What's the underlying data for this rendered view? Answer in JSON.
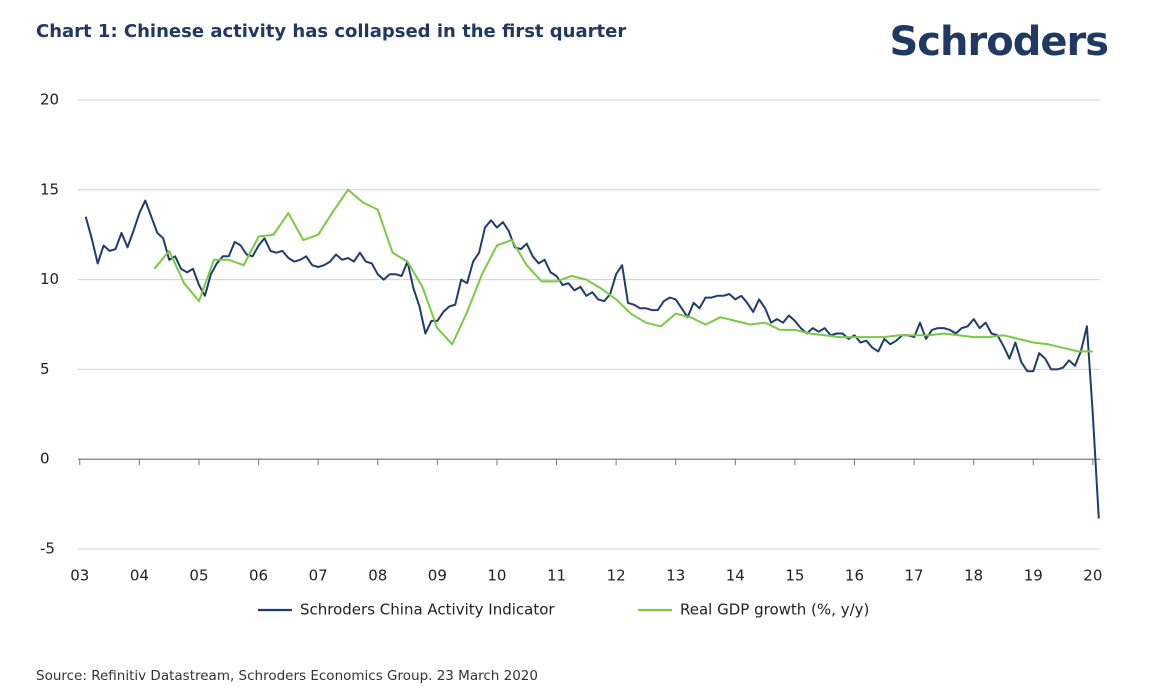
{
  "chart_data": {
    "type": "line",
    "title": "Chart 1: Chinese activity has collapsed in the first quarter",
    "logo": "Schroders",
    "source": "Source: Refinitiv Datastream, Schroders Economics Group. 23 March 2020",
    "xlim": [
      2.97,
      20.12
    ],
    "xticks": [
      {
        "value": 3,
        "label": "03"
      },
      {
        "value": 4,
        "label": "04"
      },
      {
        "value": 5,
        "label": "05"
      },
      {
        "value": 6,
        "label": "06"
      },
      {
        "value": 7,
        "label": "07"
      },
      {
        "value": 8,
        "label": "08"
      },
      {
        "value": 9,
        "label": "09"
      },
      10,
      11,
      12,
      13,
      14,
      15,
      16,
      17,
      18,
      19,
      20
    ],
    "ylim": [
      -5,
      20
    ],
    "yticks": [
      -5,
      0,
      5,
      10,
      15,
      20
    ],
    "grid": true,
    "legend": "bottom",
    "series": [
      {
        "name": "Schroders China Activity Indicator",
        "color": "#1f3c6e",
        "x": [
          3.1,
          3.2,
          3.3,
          3.4,
          3.5,
          3.6,
          3.7,
          3.8,
          3.9,
          4.0,
          4.1,
          4.2,
          4.3,
          4.4,
          4.5,
          4.6,
          4.7,
          4.8,
          4.9,
          5.0,
          5.1,
          5.2,
          5.3,
          5.4,
          5.5,
          5.6,
          5.7,
          5.8,
          5.9,
          6.0,
          6.1,
          6.2,
          6.3,
          6.4,
          6.5,
          6.6,
          6.7,
          6.8,
          6.9,
          7.0,
          7.1,
          7.2,
          7.3,
          7.4,
          7.5,
          7.6,
          7.7,
          7.8,
          7.9,
          8.0,
          8.1,
          8.2,
          8.3,
          8.4,
          8.5,
          8.6,
          8.7,
          8.8,
          8.9,
          9.0,
          9.1,
          9.2,
          9.3,
          9.4,
          9.5,
          9.6,
          9.7,
          9.8,
          9.9,
          10.0,
          10.1,
          10.2,
          10.3,
          10.4,
          10.5,
          10.6,
          10.7,
          10.8,
          10.9,
          11.0,
          11.1,
          11.2,
          11.3,
          11.4,
          11.5,
          11.6,
          11.7,
          11.8,
          11.9,
          12.0,
          12.1,
          12.2,
          12.3,
          12.4,
          12.5,
          12.6,
          12.7,
          12.8,
          12.9,
          13.0,
          13.1,
          13.2,
          13.3,
          13.4,
          13.5,
          13.6,
          13.7,
          13.8,
          13.9,
          14.0,
          14.1,
          14.2,
          14.3,
          14.4,
          14.5,
          14.6,
          14.7,
          14.8,
          14.9,
          15.0,
          15.1,
          15.2,
          15.3,
          15.4,
          15.5,
          15.6,
          15.7,
          15.8,
          15.9,
          16.0,
          16.1,
          16.2,
          16.3,
          16.4,
          16.5,
          16.6,
          16.7,
          16.8,
          16.9,
          17.0,
          17.1,
          17.2,
          17.3,
          17.4,
          17.5,
          17.6,
          17.7,
          17.8,
          17.9,
          18.0,
          18.1,
          18.2,
          18.3,
          18.4,
          18.5,
          18.6,
          18.7,
          18.8,
          18.9,
          19.0,
          19.1,
          19.2,
          19.3,
          19.4,
          19.5,
          19.6,
          19.7,
          19.8,
          19.9,
          20.0,
          20.1
        ],
        "values": [
          13.5,
          12.3,
          10.9,
          11.9,
          11.6,
          11.7,
          12.6,
          11.8,
          12.7,
          13.7,
          14.4,
          13.5,
          12.6,
          12.3,
          11.1,
          11.3,
          10.6,
          10.4,
          10.6,
          9.7,
          9.1,
          10.3,
          10.9,
          11.3,
          11.3,
          12.1,
          11.9,
          11.4,
          11.3,
          11.9,
          12.3,
          11.6,
          11.5,
          11.6,
          11.2,
          11.0,
          11.1,
          11.3,
          10.8,
          10.7,
          10.8,
          11.0,
          11.4,
          11.1,
          11.2,
          11.0,
          11.5,
          11.0,
          10.9,
          10.3,
          10.0,
          10.3,
          10.3,
          10.2,
          11.0,
          9.5,
          8.5,
          7.0,
          7.7,
          7.7,
          8.2,
          8.5,
          8.6,
          10.0,
          9.8,
          11.0,
          11.5,
          12.9,
          13.3,
          12.9,
          13.2,
          12.7,
          11.8,
          11.7,
          12.0,
          11.3,
          10.9,
          11.1,
          10.4,
          10.2,
          9.7,
          9.8,
          9.4,
          9.6,
          9.1,
          9.3,
          8.9,
          8.8,
          9.2,
          10.3,
          10.8,
          8.7,
          8.6,
          8.4,
          8.4,
          8.3,
          8.3,
          8.8,
          9.0,
          8.9,
          8.4,
          7.9,
          8.7,
          8.4,
          9.0,
          9.0,
          9.1,
          9.1,
          9.2,
          8.9,
          9.1,
          8.7,
          8.2,
          8.9,
          8.4,
          7.6,
          7.8,
          7.6,
          8.0,
          7.7,
          7.3,
          7.0,
          7.3,
          7.1,
          7.3,
          6.9,
          7.0,
          7.0,
          6.7,
          6.9,
          6.5,
          6.6,
          6.2,
          6.0,
          6.7,
          6.4,
          6.6,
          6.9,
          6.9,
          6.8,
          7.6,
          6.7,
          7.2,
          7.3,
          7.3,
          7.2,
          7.0,
          7.3,
          7.4,
          7.8,
          7.3,
          7.6,
          7.0,
          6.9,
          6.3,
          5.6,
          6.5,
          5.4,
          4.9,
          4.9,
          5.9,
          5.6,
          5.0,
          5.0,
          5.1,
          5.5,
          5.2,
          6.0,
          7.4,
          2.5,
          -3.3
        ]
      },
      {
        "name": "Real GDP growth (%, y/y)",
        "color": "#7ac943",
        "x": [
          4.25,
          4.5,
          4.75,
          5.0,
          5.25,
          5.5,
          5.75,
          6.0,
          6.25,
          6.5,
          6.75,
          7.0,
          7.25,
          7.5,
          7.75,
          8.0,
          8.25,
          8.5,
          8.75,
          9.0,
          9.25,
          9.5,
          9.75,
          10.0,
          10.25,
          10.5,
          10.75,
          11.0,
          11.25,
          11.5,
          11.75,
          12.0,
          12.25,
          12.5,
          12.75,
          13.0,
          13.25,
          13.5,
          13.75,
          14.0,
          14.25,
          14.5,
          14.75,
          15.0,
          15.25,
          15.5,
          15.75,
          16.0,
          16.25,
          16.5,
          16.75,
          17.0,
          17.25,
          17.5,
          17.75,
          18.0,
          18.25,
          18.5,
          18.75,
          19.0,
          19.25,
          19.5,
          19.75,
          20.0
        ],
        "values": [
          10.6,
          11.6,
          9.8,
          8.8,
          11.1,
          11.1,
          10.8,
          12.4,
          12.5,
          13.7,
          12.2,
          12.5,
          13.8,
          15.0,
          14.3,
          13.9,
          11.5,
          11.0,
          9.6,
          7.3,
          6.4,
          8.2,
          10.3,
          11.9,
          12.2,
          10.8,
          9.9,
          9.9,
          10.2,
          10.0,
          9.5,
          8.9,
          8.1,
          7.6,
          7.4,
          8.1,
          7.9,
          7.5,
          7.9,
          7.7,
          7.5,
          7.6,
          7.2,
          7.2,
          7.0,
          6.9,
          6.8,
          6.8,
          6.8,
          6.8,
          6.9,
          6.9,
          6.9,
          7.0,
          6.9,
          6.8,
          6.8,
          6.9,
          6.7,
          6.5,
          6.4,
          6.2,
          6.0,
          6.0
        ]
      }
    ]
  }
}
